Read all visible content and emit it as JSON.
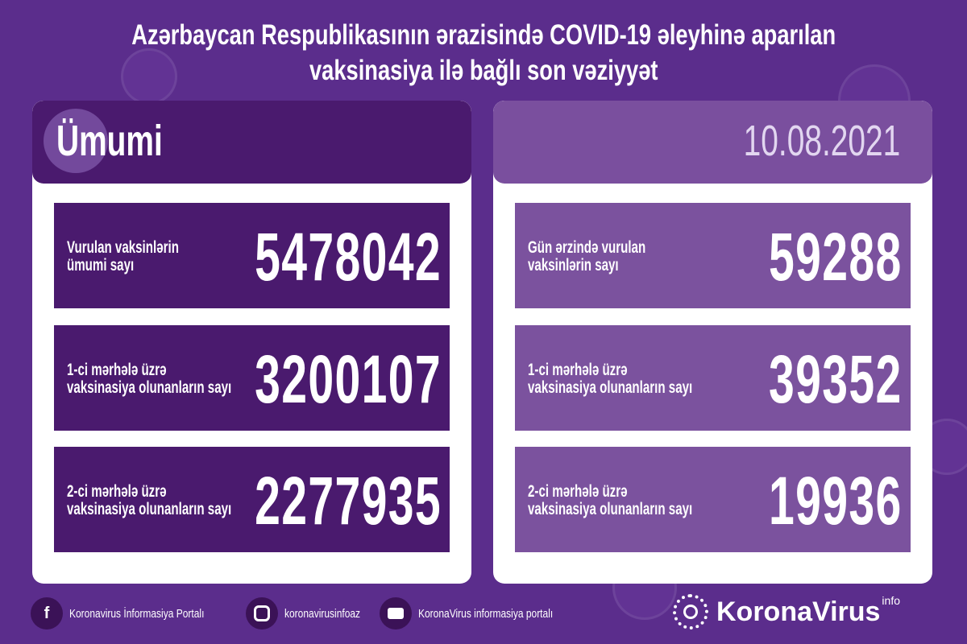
{
  "title": {
    "line1": "Azərbaycan Respublikasının ərazisində COVID-19 əleyhinə aparılan",
    "line2": "vaksinasiya ilə bağlı son vəziyyət"
  },
  "colors": {
    "background": "#5b2d8c",
    "left_panel": "#4a1a6e",
    "right_panel": "#7a4f9e",
    "card": "#ffffff"
  },
  "left": {
    "heading": "Ümumi",
    "stats": [
      {
        "label1": "Vurulan vaksinlərin",
        "label2": "ümumi sayı",
        "value": "5478042"
      },
      {
        "label1": "1-ci mərhələ üzrə",
        "label2": "vaksinasiya olunanların sayı",
        "value": "3200107"
      },
      {
        "label1": "2-ci mərhələ üzrə",
        "label2": "vaksinasiya olunanların sayı",
        "value": "2277935"
      }
    ]
  },
  "right": {
    "date": "10.08.2021",
    "stats": [
      {
        "label1": "Gün ərzində vurulan",
        "label2": "vaksinlərin sayı",
        "value": "59288"
      },
      {
        "label1": "1-ci mərhələ üzrə",
        "label2": "vaksinasiya olunanların sayı",
        "value": "39352"
      },
      {
        "label1": "2-ci mərhələ üzrə",
        "label2": "vaksinasiya olunanların sayı",
        "value": "19936"
      }
    ]
  },
  "footer": {
    "items": [
      {
        "icon": "facebook-icon",
        "text": "Koronavirus İnformasiya Portalı"
      },
      {
        "icon": "instagram-icon",
        "text": "koronavirusinfoaz"
      },
      {
        "icon": "youtube-icon",
        "text": "KoronaVirus informasiya portalı"
      }
    ],
    "logo": {
      "name": "KoronaVirus",
      "sup": "info"
    }
  }
}
